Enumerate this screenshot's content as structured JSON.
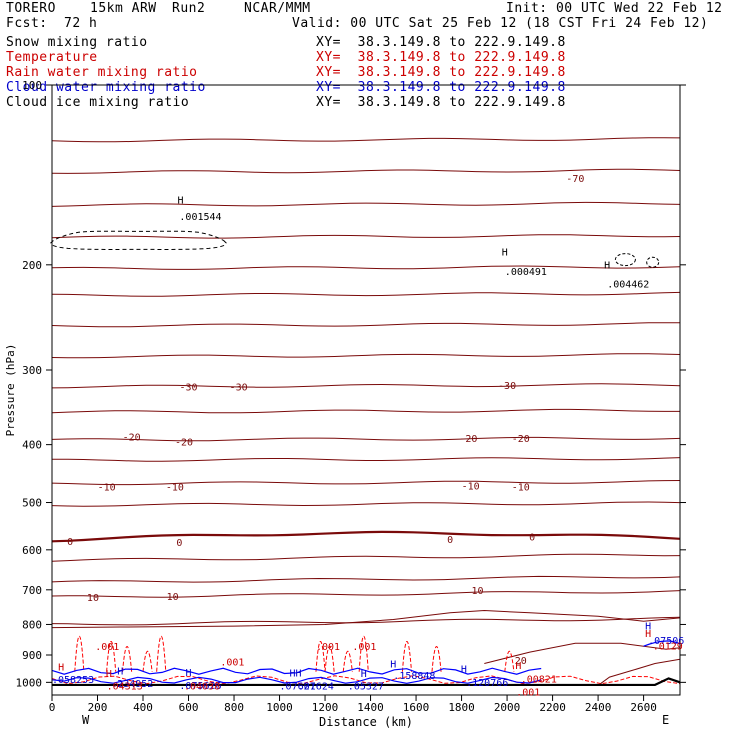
{
  "header": {
    "model": "TORERO",
    "resolution": "15km ARW",
    "run": "Run2",
    "source": "NCAR/MMM",
    "init": "Init: 00 UTC Wed 22 Feb 12",
    "fcst_label": "Fcst:",
    "fcst_value": "72 h",
    "valid": "Valid: 00 UTC Sat 25 Feb 12 (18 CST Fri 24 Feb 12)"
  },
  "legend": [
    {
      "label": "Snow mixing ratio",
      "color": "#000000",
      "xy": "XY=  38.3.149.8 to 222.9.149.8",
      "xy_color": "#000000"
    },
    {
      "label": "Temperature",
      "color": "#cc0000",
      "xy": "XY=  38.3.149.8 to 222.9.149.8",
      "xy_color": "#cc0000"
    },
    {
      "label": "Rain water mixing ratio",
      "color": "#cc0000",
      "xy": "XY=  38.3.149.8 to 222.9.149.8",
      "xy_color": "#cc0000"
    },
    {
      "label": "Cloud water mixing ratio",
      "color": "#0000cc",
      "xy": "XY=  38.3.149.8 to 222.9.149.8",
      "xy_color": "#0000cc"
    },
    {
      "label": "Cloud ice mixing ratio",
      "color": "#000000",
      "xy": "XY=  38.3.149.8 to 222.9.149.8",
      "xy_color": "#000000"
    }
  ],
  "colors": {
    "temperature": "#7a0a0a",
    "rain": "#ff0000",
    "cloud_water": "#0000ff",
    "snow": "#000000",
    "axis": "#000000",
    "ground": "#000000"
  },
  "chart_data": {
    "type": "contour",
    "title": "",
    "xlabel": "Distance (km)",
    "ylabel": "Pressure (hPa)",
    "xlim": [
      0,
      2760
    ],
    "ylim": [
      1050,
      100
    ],
    "y_scale": "log",
    "x_ticks": [
      0,
      200,
      400,
      600,
      800,
      1000,
      1200,
      1400,
      1600,
      1800,
      2000,
      2200,
      2400,
      2600
    ],
    "y_ticks": [
      100,
      200,
      300,
      400,
      500,
      600,
      700,
      800,
      900,
      1000
    ],
    "x_end_labels": {
      "left": "W",
      "right": "E"
    },
    "temperature_contour_labels": [
      {
        "x": 2300,
        "p": 143,
        "text": "-70"
      },
      {
        "x": 600,
        "p": 320,
        "text": "-30"
      },
      {
        "x": 820,
        "p": 320,
        "text": "-30"
      },
      {
        "x": 2000,
        "p": 318,
        "text": "-30"
      },
      {
        "x": 350,
        "p": 388,
        "text": "-20"
      },
      {
        "x": 580,
        "p": 395,
        "text": "-20"
      },
      {
        "x": 1830,
        "p": 390,
        "text": "-20"
      },
      {
        "x": 2060,
        "p": 390,
        "text": "-20"
      },
      {
        "x": 240,
        "p": 470,
        "text": "-10"
      },
      {
        "x": 540,
        "p": 470,
        "text": "-10"
      },
      {
        "x": 1840,
        "p": 468,
        "text": "-10"
      },
      {
        "x": 2060,
        "p": 470,
        "text": "-10"
      },
      {
        "x": 80,
        "p": 580,
        "text": "0"
      },
      {
        "x": 560,
        "p": 582,
        "text": "0"
      },
      {
        "x": 1750,
        "p": 575,
        "text": "0"
      },
      {
        "x": 2110,
        "p": 570,
        "text": "0"
      },
      {
        "x": 180,
        "p": 720,
        "text": "10"
      },
      {
        "x": 530,
        "p": 717,
        "text": "10"
      },
      {
        "x": 1870,
        "p": 700,
        "text": "10"
      },
      {
        "x": 2060,
        "p": 918,
        "text": "20"
      }
    ],
    "temperature_levels_hpa_left": [
      124,
      140,
      159,
      180,
      203,
      225,
      253,
      285,
      320,
      353,
      393,
      425,
      465,
      505,
      578,
      625,
      680,
      720,
      800
    ],
    "max_labels": [
      {
        "x": 560,
        "p": 162,
        "value": ".001544",
        "color": "#000000"
      },
      {
        "x": 1990,
        "p": 200,
        "value": ".000491",
        "color": "#000000"
      },
      {
        "x": 2440,
        "p": 210,
        "value": ".004462",
        "color": "#000000"
      },
      {
        "x": 0,
        "p": 965,
        "value": ".058253",
        "color": "#0000cc"
      },
      {
        "x": 260,
        "p": 980,
        "value": ".234952",
        "color": "#0000cc"
      },
      {
        "x": 560,
        "p": 988,
        "value": ".075626",
        "color": "#0000cc"
      },
      {
        "x": 1000,
        "p": 990,
        "value": ".07621",
        "color": "#0000cc"
      },
      {
        "x": 1080,
        "p": 990,
        "value": ".07624",
        "color": "#0000cc"
      },
      {
        "x": 1300,
        "p": 990,
        "value": ".05327",
        "color": "#0000cc"
      },
      {
        "x": 1500,
        "p": 950,
        "value": ".158848",
        "color": "#0000cc"
      },
      {
        "x": 1820,
        "p": 975,
        "value": ".120766",
        "color": "#0000cc"
      },
      {
        "x": 2620,
        "p": 830,
        "value": ".07506",
        "color": "#0000cc"
      },
      {
        "x": 240,
        "p": 990,
        "value": ".04313",
        "color": "#cc0000"
      },
      {
        "x": 580,
        "p": 990,
        "value": ".04038",
        "color": "#cc0000"
      },
      {
        "x": 2060,
        "p": 962,
        "value": ".00821",
        "color": "#cc0000"
      },
      {
        "x": 2640,
        "p": 848,
        "value": ".0129",
        "color": "#cc0000"
      },
      {
        "x": 190,
        "p": 850,
        "value": ".001",
        "color": "#cc0000"
      },
      {
        "x": 1160,
        "p": 850,
        "value": ".001",
        "color": "#cc0000"
      },
      {
        "x": 1320,
        "p": 850,
        "value": ".001",
        "color": "#cc0000"
      },
      {
        "x": 740,
        "p": 902,
        "value": ".001",
        "color": "#cc0000"
      },
      {
        "x": 2040,
        "p": 1012,
        "value": ".001",
        "color": "#cc0000"
      }
    ],
    "extrema_marks": [
      {
        "x": 565,
        "p": 158,
        "text": "H",
        "color": "#000000"
      },
      {
        "x": 1990,
        "p": 193,
        "text": "H",
        "color": "#000000"
      },
      {
        "x": 2440,
        "p": 203,
        "text": "H",
        "color": "#000000"
      },
      {
        "x": 40,
        "p": 955,
        "text": "H",
        "color": "#cc0000"
      },
      {
        "x": 300,
        "p": 970,
        "text": "H",
        "color": "#0000cc"
      },
      {
        "x": 250,
        "p": 980,
        "text": "H",
        "color": "#cc0000"
      },
      {
        "x": 600,
        "p": 975,
        "text": "H",
        "color": "#0000cc"
      },
      {
        "x": 1070,
        "p": 978,
        "text": "HH",
        "color": "#0000cc"
      },
      {
        "x": 1370,
        "p": 980,
        "text": "H",
        "color": "#0000cc"
      },
      {
        "x": 1500,
        "p": 945,
        "text": "H",
        "color": "#0000cc"
      },
      {
        "x": 1810,
        "p": 963,
        "text": "H",
        "color": "#0000cc"
      },
      {
        "x": 2050,
        "p": 950,
        "text": "H",
        "color": "#cc0000"
      },
      {
        "x": 2620,
        "p": 815,
        "text": "H",
        "color": "#0000cc"
      },
      {
        "x": 2620,
        "p": 840,
        "text": "H",
        "color": "#cc0000"
      }
    ]
  }
}
